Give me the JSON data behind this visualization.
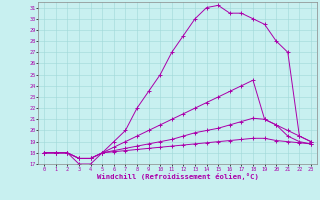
{
  "xlabel": "Windchill (Refroidissement éolien,°C)",
  "bg_color": "#c8f0f0",
  "line_color": "#aa00aa",
  "xlim": [
    -0.5,
    23.5
  ],
  "ylim": [
    17,
    31.5
  ],
  "xticks": [
    0,
    1,
    2,
    3,
    4,
    5,
    6,
    7,
    8,
    9,
    10,
    11,
    12,
    13,
    14,
    15,
    16,
    17,
    18,
    19,
    20,
    21,
    22,
    23
  ],
  "yticks": [
    17,
    18,
    19,
    20,
    21,
    22,
    23,
    24,
    25,
    26,
    27,
    28,
    29,
    30,
    31
  ],
  "lines": [
    {
      "x": [
        0,
        1,
        2,
        3,
        4,
        5,
        6,
        7,
        8,
        9,
        10,
        11,
        12,
        13,
        14,
        15,
        16,
        17,
        18,
        19,
        20,
        21,
        22,
        23
      ],
      "y": [
        18,
        18,
        18,
        17,
        17,
        18,
        19,
        20,
        22,
        23.5,
        25,
        27,
        28.5,
        30,
        31,
        31.2,
        30.5,
        30.5,
        30,
        29.5,
        28,
        27,
        19.5,
        19
      ]
    },
    {
      "x": [
        0,
        1,
        2,
        3,
        4,
        5,
        6,
        7,
        8,
        9,
        10,
        11,
        12,
        13,
        14,
        15,
        16,
        17,
        18,
        19,
        20,
        21,
        22,
        23
      ],
      "y": [
        18,
        18,
        18,
        17.5,
        17.5,
        18,
        18.5,
        19,
        19.5,
        20,
        20.5,
        21,
        21.5,
        22,
        22.5,
        23,
        23.5,
        24,
        24.5,
        21,
        20.5,
        20,
        19.5,
        19
      ]
    },
    {
      "x": [
        0,
        1,
        2,
        3,
        4,
        5,
        6,
        7,
        8,
        9,
        10,
        11,
        12,
        13,
        14,
        15,
        16,
        17,
        18,
        19,
        20,
        21,
        22,
        23
      ],
      "y": [
        18,
        18,
        18,
        17.5,
        17.5,
        18,
        18.2,
        18.4,
        18.6,
        18.8,
        19,
        19.2,
        19.5,
        19.8,
        20,
        20.2,
        20.5,
        20.8,
        21.1,
        21,
        20.5,
        19.5,
        19,
        18.8
      ]
    },
    {
      "x": [
        0,
        1,
        2,
        3,
        4,
        5,
        6,
        7,
        8,
        9,
        10,
        11,
        12,
        13,
        14,
        15,
        16,
        17,
        18,
        19,
        20,
        21,
        22,
        23
      ],
      "y": [
        18,
        18,
        18,
        17.5,
        17.5,
        18,
        18.1,
        18.2,
        18.3,
        18.4,
        18.5,
        18.6,
        18.7,
        18.8,
        18.9,
        19.0,
        19.1,
        19.2,
        19.3,
        19.3,
        19.1,
        19.0,
        18.9,
        18.8
      ]
    }
  ]
}
